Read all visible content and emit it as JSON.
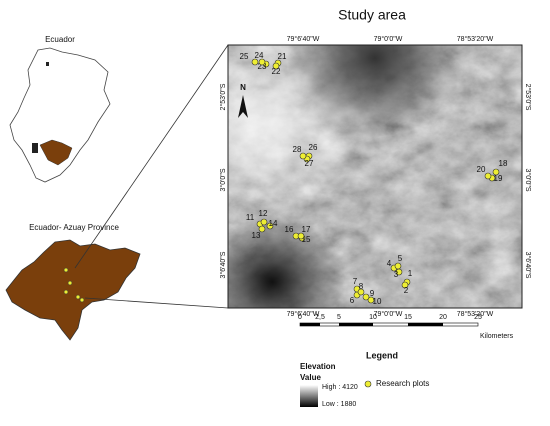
{
  "title": "Study area",
  "insets": {
    "country": "Ecuador",
    "province": "Ecuador- Azuay Province"
  },
  "north": "N",
  "coordinates": {
    "top": [
      "79°6'40\"W",
      "79°0'0\"W",
      "78°53'20\"W"
    ],
    "bottom": [
      "79°6'40\"W",
      "79°0'0\"W",
      "78°53'20\"W"
    ],
    "left": [
      "2°53'0\"S",
      "3°0'0\"S",
      "3°6'40\"S"
    ],
    "right": [
      "2°53'0\"S",
      "3°0'0\"S",
      "3°6'40\"S"
    ]
  },
  "scale_bar": {
    "ticks": [
      "0",
      "2,5",
      "5",
      "10",
      "15",
      "20",
      "25"
    ],
    "unit": "Kilometers"
  },
  "legend": {
    "title": "Legend",
    "elevation": "Elevation",
    "value": "Value",
    "high": "High : 4120",
    "low": "Low : 1880",
    "plots": "Research plots"
  },
  "plots": [
    "1",
    "2",
    "3",
    "4",
    "5",
    "6",
    "7",
    "8",
    "9",
    "10",
    "11",
    "12",
    "13",
    "14",
    "15",
    "16",
    "17",
    "18",
    "19",
    "20",
    "21",
    "22",
    "23",
    "24",
    "25",
    "26",
    "27",
    "28"
  ]
}
